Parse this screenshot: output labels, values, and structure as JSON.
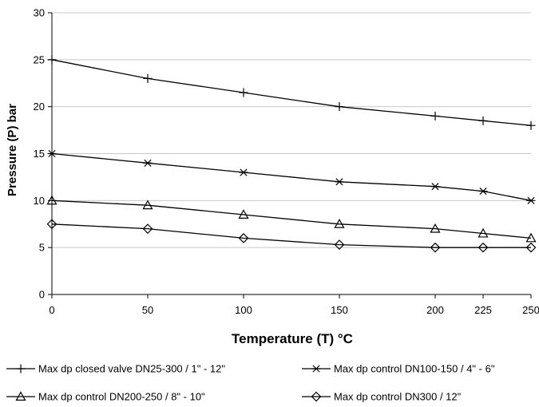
{
  "chart_data": {
    "type": "line",
    "title": "",
    "xlabel": "Temperature (T) °C",
    "ylabel": "Pressure (P) bar",
    "xlim": [
      0,
      250
    ],
    "ylim": [
      0,
      30
    ],
    "x_ticks": [
      0,
      50,
      100,
      150,
      200,
      225,
      250
    ],
    "x_tick_labels": [
      "0",
      "50",
      "100",
      "150",
      "200",
      "225",
      "250"
    ],
    "y_ticks": [
      0,
      5,
      10,
      15,
      20,
      25,
      30
    ],
    "y_tick_labels": [
      "0",
      "5",
      "10",
      "15",
      "20",
      "25",
      "30"
    ],
    "grid": "horizontal",
    "legend_position": "bottom",
    "series": [
      {
        "name": "Max dp closed valve DN25-300 / 1\" - 12\"",
        "marker": "plus",
        "x": [
          0,
          50,
          100,
          150,
          200,
          225,
          250
        ],
        "values": [
          25,
          23,
          21.5,
          20,
          19,
          18.5,
          18
        ]
      },
      {
        "name": "Max dp control DN100-150 / 4\" - 6\"",
        "marker": "asterisk",
        "x": [
          0,
          50,
          100,
          150,
          200,
          225,
          250
        ],
        "values": [
          15,
          14,
          13,
          12,
          11.5,
          11,
          10
        ]
      },
      {
        "name": "Max dp control DN200-250 / 8\" - 10\"",
        "marker": "triangle",
        "x": [
          0,
          50,
          100,
          150,
          200,
          225,
          250
        ],
        "values": [
          10,
          9.5,
          8.5,
          7.5,
          7,
          6.5,
          6
        ]
      },
      {
        "name": "Max dp control DN300 / 12\"",
        "marker": "diamond",
        "x": [
          0,
          50,
          100,
          150,
          200,
          225,
          250
        ],
        "values": [
          7.5,
          7,
          6,
          5.3,
          5,
          5,
          5
        ]
      }
    ]
  }
}
